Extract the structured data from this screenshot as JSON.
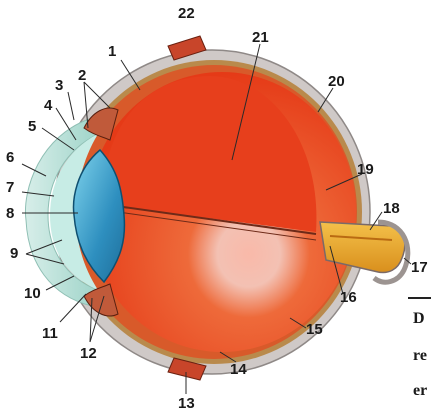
{
  "diagram": {
    "labels": [
      "1",
      "2",
      "3",
      "4",
      "5",
      "6",
      "7",
      "8",
      "9",
      "10",
      "11",
      "12",
      "13",
      "14",
      "15",
      "16",
      "17",
      "18",
      "19",
      "20",
      "21",
      "22"
    ],
    "caption_fragments": [
      "D",
      "re",
      "er"
    ]
  },
  "colors": {
    "vitreous": "#e8401e",
    "lens": "#3aa0c8",
    "sclera": "#c9c2c0",
    "choroid": "#b8884a",
    "optic_nerve": "#e8a630",
    "muscle": "#c8452a",
    "cornea": "#a8dccf"
  }
}
